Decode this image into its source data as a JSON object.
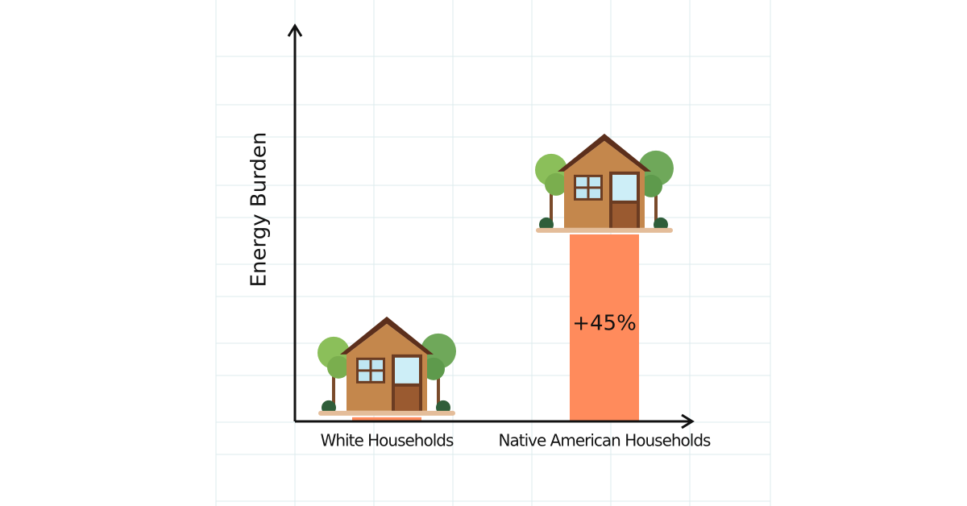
{
  "chart_data": {
    "type": "bar",
    "y_label": "Energy Burden",
    "categories": [
      "White Households",
      "Native American Households"
    ],
    "values": [
      1,
      45
    ],
    "value_labels": [
      null,
      "+45%"
    ],
    "color": "#ff8b5c",
    "ylim": [
      0,
      95
    ]
  }
}
